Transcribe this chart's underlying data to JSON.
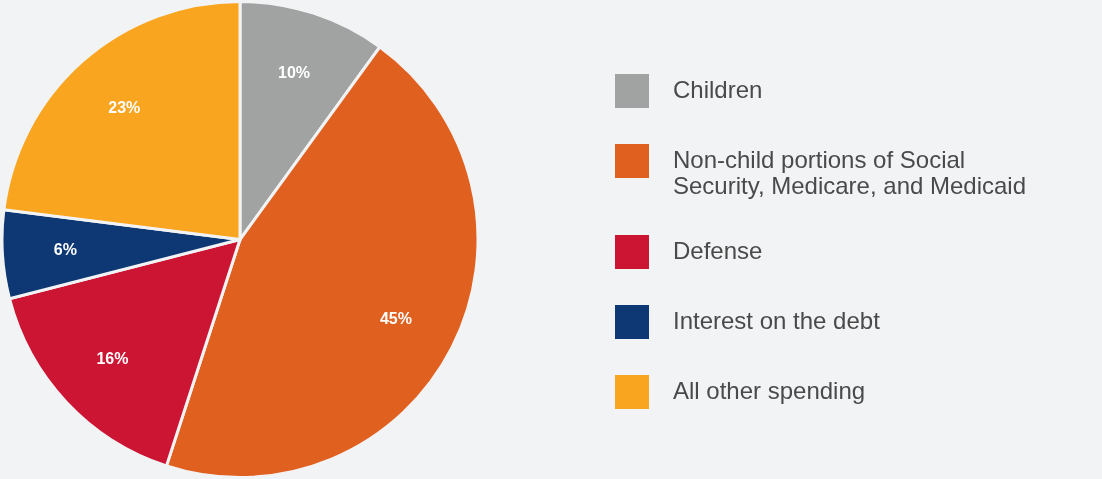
{
  "chart_data": {
    "type": "pie",
    "categories": [
      "Children",
      "Non-child portions of Social Security, Medicare, and Medicaid",
      "Defense",
      "Interest on the debt",
      "All other spending"
    ],
    "values": [
      10,
      45,
      16,
      6,
      23
    ],
    "colors": [
      "#a0a3a2",
      "#e06020",
      "#cc1433",
      "#0d3873",
      "#f9a51f"
    ],
    "value_labels": [
      "10%",
      "45%",
      "16%",
      "6%",
      "23%"
    ],
    "legend": "right"
  }
}
